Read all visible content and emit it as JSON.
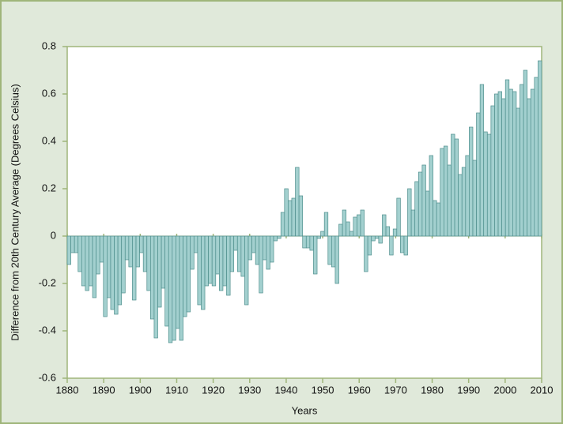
{
  "chart_data": {
    "type": "bar",
    "x_label": "Years",
    "y_label": "Difference from 20th Century Average (Degrees Celsius)",
    "x": [
      1880,
      1881,
      1882,
      1883,
      1884,
      1885,
      1886,
      1887,
      1888,
      1889,
      1890,
      1891,
      1892,
      1893,
      1894,
      1895,
      1896,
      1897,
      1898,
      1899,
      1900,
      1901,
      1902,
      1903,
      1904,
      1905,
      1906,
      1907,
      1908,
      1909,
      1910,
      1911,
      1912,
      1913,
      1914,
      1915,
      1916,
      1917,
      1918,
      1919,
      1920,
      1921,
      1922,
      1923,
      1924,
      1925,
      1926,
      1927,
      1928,
      1929,
      1930,
      1931,
      1932,
      1933,
      1934,
      1935,
      1936,
      1937,
      1938,
      1939,
      1940,
      1941,
      1942,
      1943,
      1944,
      1945,
      1946,
      1947,
      1948,
      1949,
      1950,
      1951,
      1952,
      1953,
      1954,
      1955,
      1956,
      1957,
      1958,
      1959,
      1960,
      1961,
      1962,
      1963,
      1964,
      1965,
      1966,
      1967,
      1968,
      1969,
      1970,
      1971,
      1972,
      1973,
      1974,
      1975,
      1976,
      1977,
      1978,
      1979,
      1980,
      1981,
      1982,
      1983,
      1984,
      1985,
      1986,
      1987,
      1988,
      1989,
      1990,
      1991,
      1992,
      1993,
      1994,
      1995,
      1996,
      1997,
      1998,
      1999,
      2000,
      2001,
      2002,
      2003,
      2004,
      2005,
      2006,
      2007,
      2008,
      2009,
      2010
    ],
    "values": [
      -0.12,
      -0.07,
      -0.07,
      -0.15,
      -0.21,
      -0.23,
      -0.21,
      -0.26,
      -0.16,
      -0.11,
      -0.34,
      -0.26,
      -0.31,
      -0.33,
      -0.29,
      -0.24,
      -0.1,
      -0.13,
      -0.27,
      -0.13,
      -0.07,
      -0.15,
      -0.23,
      -0.35,
      -0.43,
      -0.3,
      -0.22,
      -0.38,
      -0.45,
      -0.44,
      -0.39,
      -0.44,
      -0.34,
      -0.32,
      -0.14,
      -0.07,
      -0.29,
      -0.31,
      -0.21,
      -0.2,
      -0.21,
      -0.16,
      -0.23,
      -0.21,
      -0.25,
      -0.15,
      -0.06,
      -0.15,
      -0.17,
      -0.29,
      -0.1,
      -0.07,
      -0.12,
      -0.24,
      -0.1,
      -0.14,
      -0.11,
      -0.02,
      -0.01,
      0.1,
      0.2,
      0.15,
      0.16,
      0.29,
      0.17,
      -0.05,
      -0.05,
      -0.06,
      -0.16,
      -0.01,
      0.02,
      0.1,
      -0.12,
      -0.13,
      -0.2,
      0.05,
      0.11,
      0.06,
      0.02,
      0.08,
      0.09,
      0.11,
      -0.15,
      -0.08,
      -0.02,
      -0.01,
      -0.03,
      0.09,
      0.04,
      -0.08,
      0.03,
      0.16,
      -0.07,
      -0.08,
      0.2,
      0.11,
      0.23,
      0.27,
      0.3,
      0.19,
      0.34,
      0.15,
      0.14,
      0.37,
      0.38,
      0.3,
      0.43,
      0.41,
      0.26,
      0.29,
      0.34,
      0.46,
      0.32,
      0.52,
      0.64,
      0.44,
      0.43,
      0.55,
      0.6,
      0.61,
      0.58,
      0.66,
      0.62,
      0.61,
      0.54,
      0.64,
      0.7,
      0.58,
      0.62,
      0.67,
      0.74
    ],
    "color": "#a3d0cf",
    "edge_color": "#4e8e8c",
    "xlim": [
      1880,
      2010
    ],
    "xticks": [
      1880,
      1890,
      1900,
      1910,
      1920,
      1930,
      1940,
      1950,
      1960,
      1970,
      1980,
      1990,
      2000,
      2010
    ],
    "ylim": [
      -0.6,
      0.8
    ],
    "yticks": [
      -0.6,
      -0.4,
      -0.2,
      0,
      0.2,
      0.4,
      0.6,
      0.8
    ]
  }
}
